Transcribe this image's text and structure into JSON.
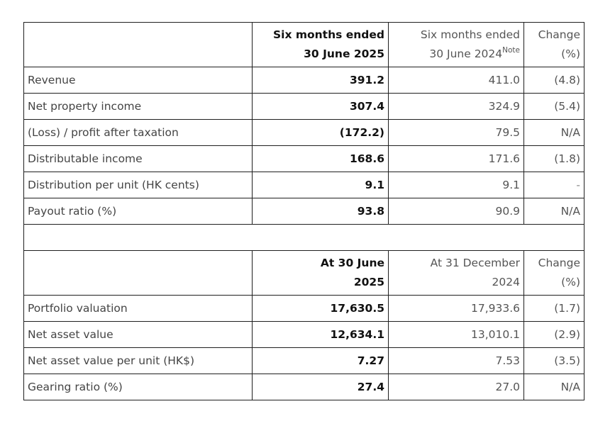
{
  "top_text": "",
  "table1": {
    "header": {
      "col2_line1": "Six months ended",
      "col2_line2": "30 June 2025",
      "col3_line1": "Six months ended",
      "col3_line2": "30 June 2024",
      "col3_note": "Note",
      "col4_line1": "Change",
      "col4_line2": "(%)"
    },
    "rows": [
      {
        "label": "Revenue",
        "current": "391.2",
        "prior": "411.0",
        "change": "(4.8)"
      },
      {
        "label": "Net property income",
        "current": "307.4",
        "prior": "324.9",
        "change": "(5.4)"
      },
      {
        "label": "(Loss) / profit after taxation",
        "current": "(172.2)",
        "prior": "79.5",
        "change": "N/A"
      },
      {
        "label": "Distributable income",
        "current": "168.6",
        "prior": "171.6",
        "change": "(1.8)"
      },
      {
        "label": "Distribution per unit (HK cents)",
        "current": "9.1",
        "prior": "9.1",
        "change": "-"
      },
      {
        "label": "Payout ratio (%)",
        "current": "93.8",
        "prior": "90.9",
        "change": "N/A"
      }
    ]
  },
  "table2": {
    "header": {
      "col2_line1": "At 30 June",
      "col2_line2": "2025",
      "col3_line1": "At 31 December",
      "col3_line2": "2024",
      "col4_line1": "Change",
      "col4_line2": "(%)"
    },
    "rows": [
      {
        "label": "Portfolio valuation",
        "current": "17,630.5",
        "prior": "17,933.6",
        "change": "(1.7)"
      },
      {
        "label": "Net asset value",
        "current": "12,634.1",
        "prior": "13,010.1",
        "change": "(2.9)"
      },
      {
        "label": "Net asset value per unit (HK$)",
        "current": "7.27",
        "prior": "7.53",
        "change": "(3.5)"
      },
      {
        "label": "Gearing ratio (%)",
        "current": "27.4",
        "prior": "27.0",
        "change": "N/A"
      }
    ]
  }
}
